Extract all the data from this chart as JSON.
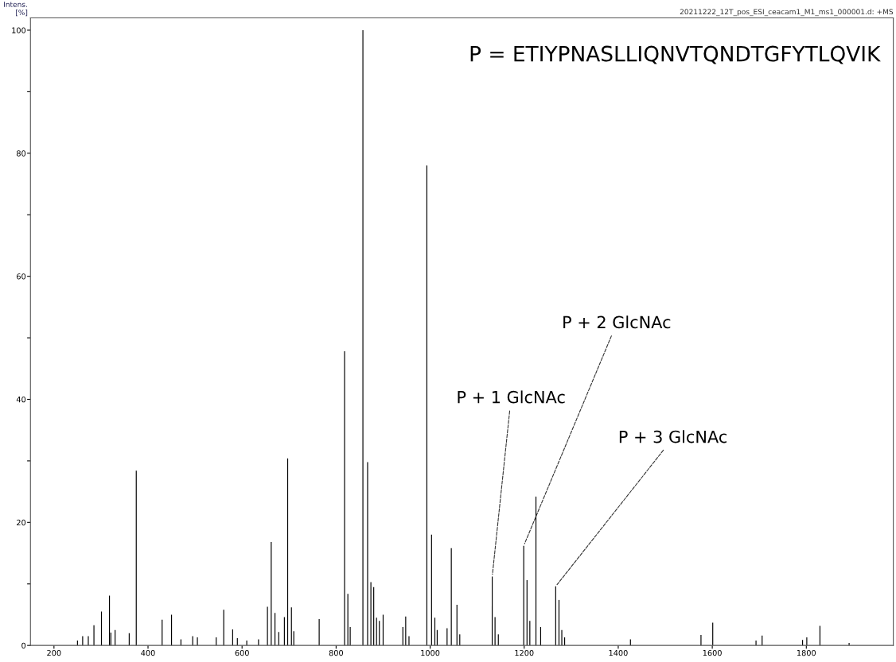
{
  "chart_data": {
    "type": "bar",
    "title": "P = ETIYPNASLLIQNVTQNDTGFYTLQVIK",
    "subtitle": "20211222_12T_pos_ESI_ceacam1_M1_ms1_000001.d: +MS",
    "ylabel": "Intens.\n[%]",
    "x": [
      250,
      261,
      273,
      285,
      301,
      318,
      321,
      330,
      360,
      375,
      430,
      450,
      470,
      495,
      505,
      545,
      561,
      580,
      590,
      610,
      635,
      654,
      662,
      670,
      678,
      690,
      697,
      705,
      710,
      764,
      818,
      825,
      830,
      857,
      867,
      874,
      880,
      886,
      892,
      900,
      942,
      948,
      955,
      993,
      1003,
      1010,
      1015,
      1036,
      1045,
      1057,
      1063,
      1132,
      1138,
      1145,
      1199,
      1206,
      1212,
      1225,
      1235,
      1267,
      1274,
      1280,
      1286,
      1426,
      1576,
      1601,
      1693,
      1706,
      1792,
      1801,
      1829,
      1891
    ],
    "values": [
      0.8,
      1.5,
      1.5,
      3.3,
      5.5,
      8.1,
      2.1,
      2.5,
      2.0,
      28.4,
      4.2,
      5.0,
      1.0,
      1.5,
      1.3,
      1.3,
      5.8,
      2.6,
      1.2,
      0.8,
      1.0,
      6.3,
      16.8,
      5.3,
      2.2,
      4.6,
      30.4,
      6.2,
      2.3,
      4.3,
      47.8,
      8.4,
      3.0,
      100,
      29.8,
      10.3,
      9.5,
      4.5,
      4.0,
      5.0,
      3.0,
      4.7,
      1.5,
      78,
      18,
      4.5,
      2.5,
      2.8,
      15.8,
      6.6,
      1.8,
      11.2,
      4.6,
      1.8,
      16.2,
      10.6,
      4.0,
      24.2,
      3.0,
      9.6,
      7.4,
      2.5,
      1.3,
      1.0,
      1.7,
      3.7,
      0.8,
      1.6,
      0.9,
      1.3,
      3.2,
      0.4
    ],
    "color": "#000000",
    "xlim": [
      150,
      1985
    ],
    "xticks": [
      200,
      400,
      600,
      800,
      1000,
      1200,
      1400,
      1600,
      1800
    ],
    "ylim": [
      0,
      102
    ],
    "yticks": [
      0,
      {
        "value": 10,
        "label": null
      },
      20,
      {
        "value": 30,
        "label": null
      },
      40,
      {
        "value": 50,
        "label": null
      },
      60,
      {
        "value": 70,
        "label": null
      },
      80,
      {
        "value": 90,
        "label": null
      },
      100
    ],
    "grid": false,
    "annotations": [
      {
        "text": "P + 1 GlcNAc",
        "x": 1132,
        "y": 11.2
      },
      {
        "text": "P + 2 GlcNAc",
        "x": 1199,
        "y": 16.2
      },
      {
        "text": "P + 3 GlcNAc",
        "x": 1267,
        "y": 9.6
      }
    ]
  }
}
